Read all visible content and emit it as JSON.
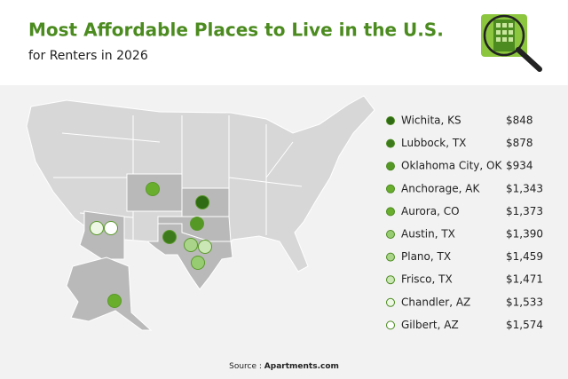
{
  "header": {
    "title": "Most Affordable Places to Live in the U.S.",
    "subtitle": "for Renters in 2026"
  },
  "places": [
    {
      "name": "Wichita, KS",
      "rent": "$848",
      "color": "#2f6a14"
    },
    {
      "name": "Lubbock, TX",
      "rent": "$878",
      "color": "#3c7a1c"
    },
    {
      "name": "Oklahoma City, OK",
      "rent": "$934",
      "color": "#559826"
    },
    {
      "name": "Anchorage, AK",
      "rent": "$1,343",
      "color": "#6aae2e"
    },
    {
      "name": "Aurora, CO",
      "rent": "$1,373",
      "color": "#6aae2e"
    },
    {
      "name": "Austin, TX",
      "rent": "$1,390",
      "color": "#98cc72"
    },
    {
      "name": "Plano, TX",
      "rent": "$1,459",
      "color": "#a9d48a"
    },
    {
      "name": "Frisco, TX",
      "rent": "$1,471",
      "color": "#cbe7b5"
    },
    {
      "name": "Chandler, AZ",
      "rent": "$1,533",
      "color": "#eef7e6"
    },
    {
      "name": "Gilbert, AZ",
      "rent": "$1,574",
      "color": "#ffffff"
    }
  ],
  "footer": {
    "source_label": "Source :",
    "source_name": "Apartments.com"
  }
}
